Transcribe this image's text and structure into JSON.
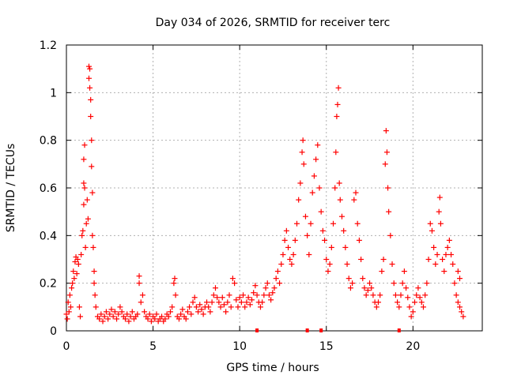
{
  "chart_data": {
    "type": "scatter",
    "title": "Day 034 of 2026, SRMTID for receiver terc",
    "xlabel": "GPS time / hours",
    "ylabel": "SRMTID / TECUs",
    "xlim": [
      0,
      24
    ],
    "ylim": [
      0,
      1.2
    ],
    "x_ticks": [
      0,
      5,
      10,
      15,
      20
    ],
    "x_tick_labels": [
      "0",
      "5",
      "10",
      "15",
      "20"
    ],
    "y_ticks": [
      0,
      0.2,
      0.4,
      0.6,
      0.8,
      1.0,
      1.2
    ],
    "y_tick_labels": [
      "0",
      "0.2",
      "0.4",
      "0.6",
      "0.8",
      "1",
      "1.2"
    ],
    "grid": true,
    "marker": "+",
    "color": "#ff0000",
    "series": [
      {
        "name": "SRMTID",
        "points": [
          [
            0.0,
            0.07
          ],
          [
            0.05,
            0.05
          ],
          [
            0.1,
            0.12
          ],
          [
            0.15,
            0.08
          ],
          [
            0.2,
            0.15
          ],
          [
            0.25,
            0.1
          ],
          [
            0.3,
            0.18
          ],
          [
            0.35,
            0.2
          ],
          [
            0.4,
            0.25
          ],
          [
            0.45,
            0.22
          ],
          [
            0.5,
            0.29
          ],
          [
            0.55,
            0.31
          ],
          [
            0.6,
            0.24
          ],
          [
            0.65,
            0.3
          ],
          [
            0.7,
            0.28
          ],
          [
            0.75,
            0.1
          ],
          [
            0.8,
            0.06
          ],
          [
            0.85,
            0.32
          ],
          [
            0.9,
            0.4
          ],
          [
            0.95,
            0.42
          ],
          [
            1.0,
            0.53
          ],
          [
            1.0,
            0.62
          ],
          [
            1.0,
            0.72
          ],
          [
            1.05,
            0.78
          ],
          [
            1.05,
            0.6
          ],
          [
            1.1,
            0.35
          ],
          [
            1.15,
            0.45
          ],
          [
            1.2,
            0.55
          ],
          [
            1.25,
            0.47
          ],
          [
            1.3,
            1.11
          ],
          [
            1.3,
            1.06
          ],
          [
            1.35,
            1.1
          ],
          [
            1.35,
            1.02
          ],
          [
            1.4,
            0.9
          ],
          [
            1.4,
            0.97
          ],
          [
            1.45,
            0.8
          ],
          [
            1.45,
            0.69
          ],
          [
            1.5,
            0.58
          ],
          [
            1.5,
            0.4
          ],
          [
            1.55,
            0.35
          ],
          [
            1.6,
            0.25
          ],
          [
            1.6,
            0.2
          ],
          [
            1.65,
            0.15
          ],
          [
            1.7,
            0.1
          ],
          [
            1.8,
            0.06
          ],
          [
            1.9,
            0.05
          ],
          [
            2.0,
            0.07
          ],
          [
            2.1,
            0.04
          ],
          [
            2.2,
            0.06
          ],
          [
            2.3,
            0.08
          ],
          [
            2.4,
            0.05
          ],
          [
            2.5,
            0.07
          ],
          [
            2.6,
            0.09
          ],
          [
            2.7,
            0.06
          ],
          [
            2.8,
            0.08
          ],
          [
            2.9,
            0.05
          ],
          [
            3.0,
            0.07
          ],
          [
            3.1,
            0.1
          ],
          [
            3.2,
            0.08
          ],
          [
            3.3,
            0.06
          ],
          [
            3.4,
            0.05
          ],
          [
            3.5,
            0.07
          ],
          [
            3.6,
            0.04
          ],
          [
            3.7,
            0.06
          ],
          [
            3.8,
            0.08
          ],
          [
            3.9,
            0.05
          ],
          [
            4.0,
            0.06
          ],
          [
            4.1,
            0.07
          ],
          [
            4.2,
            0.23
          ],
          [
            4.2,
            0.2
          ],
          [
            4.3,
            0.12
          ],
          [
            4.4,
            0.15
          ],
          [
            4.5,
            0.08
          ],
          [
            4.6,
            0.06
          ],
          [
            4.7,
            0.05
          ],
          [
            4.8,
            0.07
          ],
          [
            4.9,
            0.04
          ],
          [
            5.0,
            0.06
          ],
          [
            5.1,
            0.05
          ],
          [
            5.2,
            0.07
          ],
          [
            5.3,
            0.04
          ],
          [
            5.4,
            0.05
          ],
          [
            5.5,
            0.06
          ],
          [
            5.6,
            0.04
          ],
          [
            5.7,
            0.05
          ],
          [
            5.8,
            0.07
          ],
          [
            5.9,
            0.06
          ],
          [
            6.0,
            0.08
          ],
          [
            6.1,
            0.1
          ],
          [
            6.2,
            0.2
          ],
          [
            6.25,
            0.22
          ],
          [
            6.3,
            0.15
          ],
          [
            6.4,
            0.06
          ],
          [
            6.5,
            0.05
          ],
          [
            6.6,
            0.07
          ],
          [
            6.7,
            0.09
          ],
          [
            6.8,
            0.06
          ],
          [
            6.9,
            0.05
          ],
          [
            7.0,
            0.08
          ],
          [
            7.1,
            0.1
          ],
          [
            7.2,
            0.07
          ],
          [
            7.3,
            0.12
          ],
          [
            7.4,
            0.14
          ],
          [
            7.5,
            0.1
          ],
          [
            7.6,
            0.08
          ],
          [
            7.7,
            0.11
          ],
          [
            7.8,
            0.09
          ],
          [
            7.9,
            0.07
          ],
          [
            8.0,
            0.1
          ],
          [
            8.1,
            0.12
          ],
          [
            8.2,
            0.1
          ],
          [
            8.3,
            0.08
          ],
          [
            8.4,
            0.12
          ],
          [
            8.5,
            0.15
          ],
          [
            8.6,
            0.18
          ],
          [
            8.7,
            0.14
          ],
          [
            8.8,
            0.12
          ],
          [
            8.9,
            0.1
          ],
          [
            9.0,
            0.14
          ],
          [
            9.1,
            0.11
          ],
          [
            9.2,
            0.08
          ],
          [
            9.3,
            0.12
          ],
          [
            9.4,
            0.15
          ],
          [
            9.5,
            0.1
          ],
          [
            9.6,
            0.22
          ],
          [
            9.7,
            0.2
          ],
          [
            9.8,
            0.13
          ],
          [
            9.9,
            0.1
          ],
          [
            10.0,
            0.14
          ],
          [
            10.1,
            0.12
          ],
          [
            10.2,
            0.15
          ],
          [
            10.3,
            0.1
          ],
          [
            10.4,
            0.12
          ],
          [
            10.5,
            0.14
          ],
          [
            10.6,
            0.11
          ],
          [
            10.7,
            0.13
          ],
          [
            10.8,
            0.16
          ],
          [
            10.9,
            0.19
          ],
          [
            11.0,
            0.15
          ],
          [
            11.1,
            0.12
          ],
          [
            11.2,
            0.1
          ],
          [
            11.3,
            0.12
          ],
          [
            11.4,
            0.15
          ],
          [
            11.5,
            0.18
          ],
          [
            11.6,
            0.2
          ],
          [
            11.7,
            0.15
          ],
          [
            11.8,
            0.13
          ],
          [
            11.9,
            0.16
          ],
          [
            12.0,
            0.18
          ],
          [
            12.1,
            0.22
          ],
          [
            12.2,
            0.25
          ],
          [
            12.3,
            0.2
          ],
          [
            12.4,
            0.28
          ],
          [
            12.5,
            0.32
          ],
          [
            12.6,
            0.38
          ],
          [
            12.7,
            0.42
          ],
          [
            12.8,
            0.35
          ],
          [
            12.9,
            0.3
          ],
          [
            13.0,
            0.28
          ],
          [
            13.1,
            0.32
          ],
          [
            13.2,
            0.38
          ],
          [
            13.3,
            0.45
          ],
          [
            13.4,
            0.55
          ],
          [
            13.5,
            0.62
          ],
          [
            13.6,
            0.75
          ],
          [
            13.65,
            0.8
          ],
          [
            13.7,
            0.7
          ],
          [
            13.8,
            0.48
          ],
          [
            13.9,
            0.4
          ],
          [
            14.0,
            0.32
          ],
          [
            14.1,
            0.45
          ],
          [
            14.2,
            0.58
          ],
          [
            14.3,
            0.65
          ],
          [
            14.4,
            0.72
          ],
          [
            14.5,
            0.78
          ],
          [
            14.6,
            0.6
          ],
          [
            14.7,
            0.5
          ],
          [
            14.8,
            0.42
          ],
          [
            14.9,
            0.38
          ],
          [
            15.0,
            0.3
          ],
          [
            15.1,
            0.25
          ],
          [
            15.2,
            0.28
          ],
          [
            15.3,
            0.35
          ],
          [
            15.4,
            0.45
          ],
          [
            15.5,
            0.6
          ],
          [
            15.55,
            0.75
          ],
          [
            15.6,
            0.9
          ],
          [
            15.65,
            0.95
          ],
          [
            15.7,
            1.02
          ],
          [
            15.75,
            0.62
          ],
          [
            15.8,
            0.55
          ],
          [
            15.9,
            0.48
          ],
          [
            16.0,
            0.42
          ],
          [
            16.1,
            0.35
          ],
          [
            16.2,
            0.28
          ],
          [
            16.3,
            0.22
          ],
          [
            16.4,
            0.18
          ],
          [
            16.5,
            0.2
          ],
          [
            16.6,
            0.55
          ],
          [
            16.7,
            0.58
          ],
          [
            16.8,
            0.45
          ],
          [
            16.9,
            0.38
          ],
          [
            17.0,
            0.3
          ],
          [
            17.1,
            0.22
          ],
          [
            17.2,
            0.18
          ],
          [
            17.3,
            0.15
          ],
          [
            17.4,
            0.17
          ],
          [
            17.5,
            0.2
          ],
          [
            17.6,
            0.18
          ],
          [
            17.7,
            0.15
          ],
          [
            17.8,
            0.12
          ],
          [
            17.9,
            0.1
          ],
          [
            18.0,
            0.12
          ],
          [
            18.1,
            0.15
          ],
          [
            18.2,
            0.25
          ],
          [
            18.3,
            0.3
          ],
          [
            18.4,
            0.7
          ],
          [
            18.45,
            0.84
          ],
          [
            18.5,
            0.75
          ],
          [
            18.55,
            0.6
          ],
          [
            18.6,
            0.5
          ],
          [
            18.7,
            0.4
          ],
          [
            18.8,
            0.28
          ],
          [
            18.9,
            0.2
          ],
          [
            19.0,
            0.15
          ],
          [
            19.1,
            0.12
          ],
          [
            19.2,
            0.1
          ],
          [
            19.3,
            0.15
          ],
          [
            19.4,
            0.2
          ],
          [
            19.5,
            0.25
          ],
          [
            19.6,
            0.18
          ],
          [
            19.7,
            0.14
          ],
          [
            19.8,
            0.1
          ],
          [
            19.9,
            0.06
          ],
          [
            20.0,
            0.08
          ],
          [
            20.1,
            0.12
          ],
          [
            20.2,
            0.15
          ],
          [
            20.3,
            0.18
          ],
          [
            20.4,
            0.14
          ],
          [
            20.5,
            0.12
          ],
          [
            20.6,
            0.1
          ],
          [
            20.7,
            0.15
          ],
          [
            20.8,
            0.2
          ],
          [
            20.9,
            0.3
          ],
          [
            21.0,
            0.45
          ],
          [
            21.1,
            0.42
          ],
          [
            21.2,
            0.35
          ],
          [
            21.3,
            0.28
          ],
          [
            21.4,
            0.32
          ],
          [
            21.5,
            0.5
          ],
          [
            21.55,
            0.56
          ],
          [
            21.6,
            0.45
          ],
          [
            21.7,
            0.3
          ],
          [
            21.8,
            0.25
          ],
          [
            21.9,
            0.32
          ],
          [
            22.0,
            0.35
          ],
          [
            22.1,
            0.38
          ],
          [
            22.2,
            0.32
          ],
          [
            22.3,
            0.28
          ],
          [
            22.4,
            0.2
          ],
          [
            22.5,
            0.15
          ],
          [
            22.6,
            0.12
          ],
          [
            22.7,
            0.1
          ],
          [
            22.8,
            0.08
          ],
          [
            22.9,
            0.06
          ],
          [
            22.6,
            0.25
          ],
          [
            22.7,
            0.22
          ]
        ]
      }
    ],
    "gap_markers_x": [
      11.0,
      13.9,
      14.7,
      19.2
    ]
  }
}
